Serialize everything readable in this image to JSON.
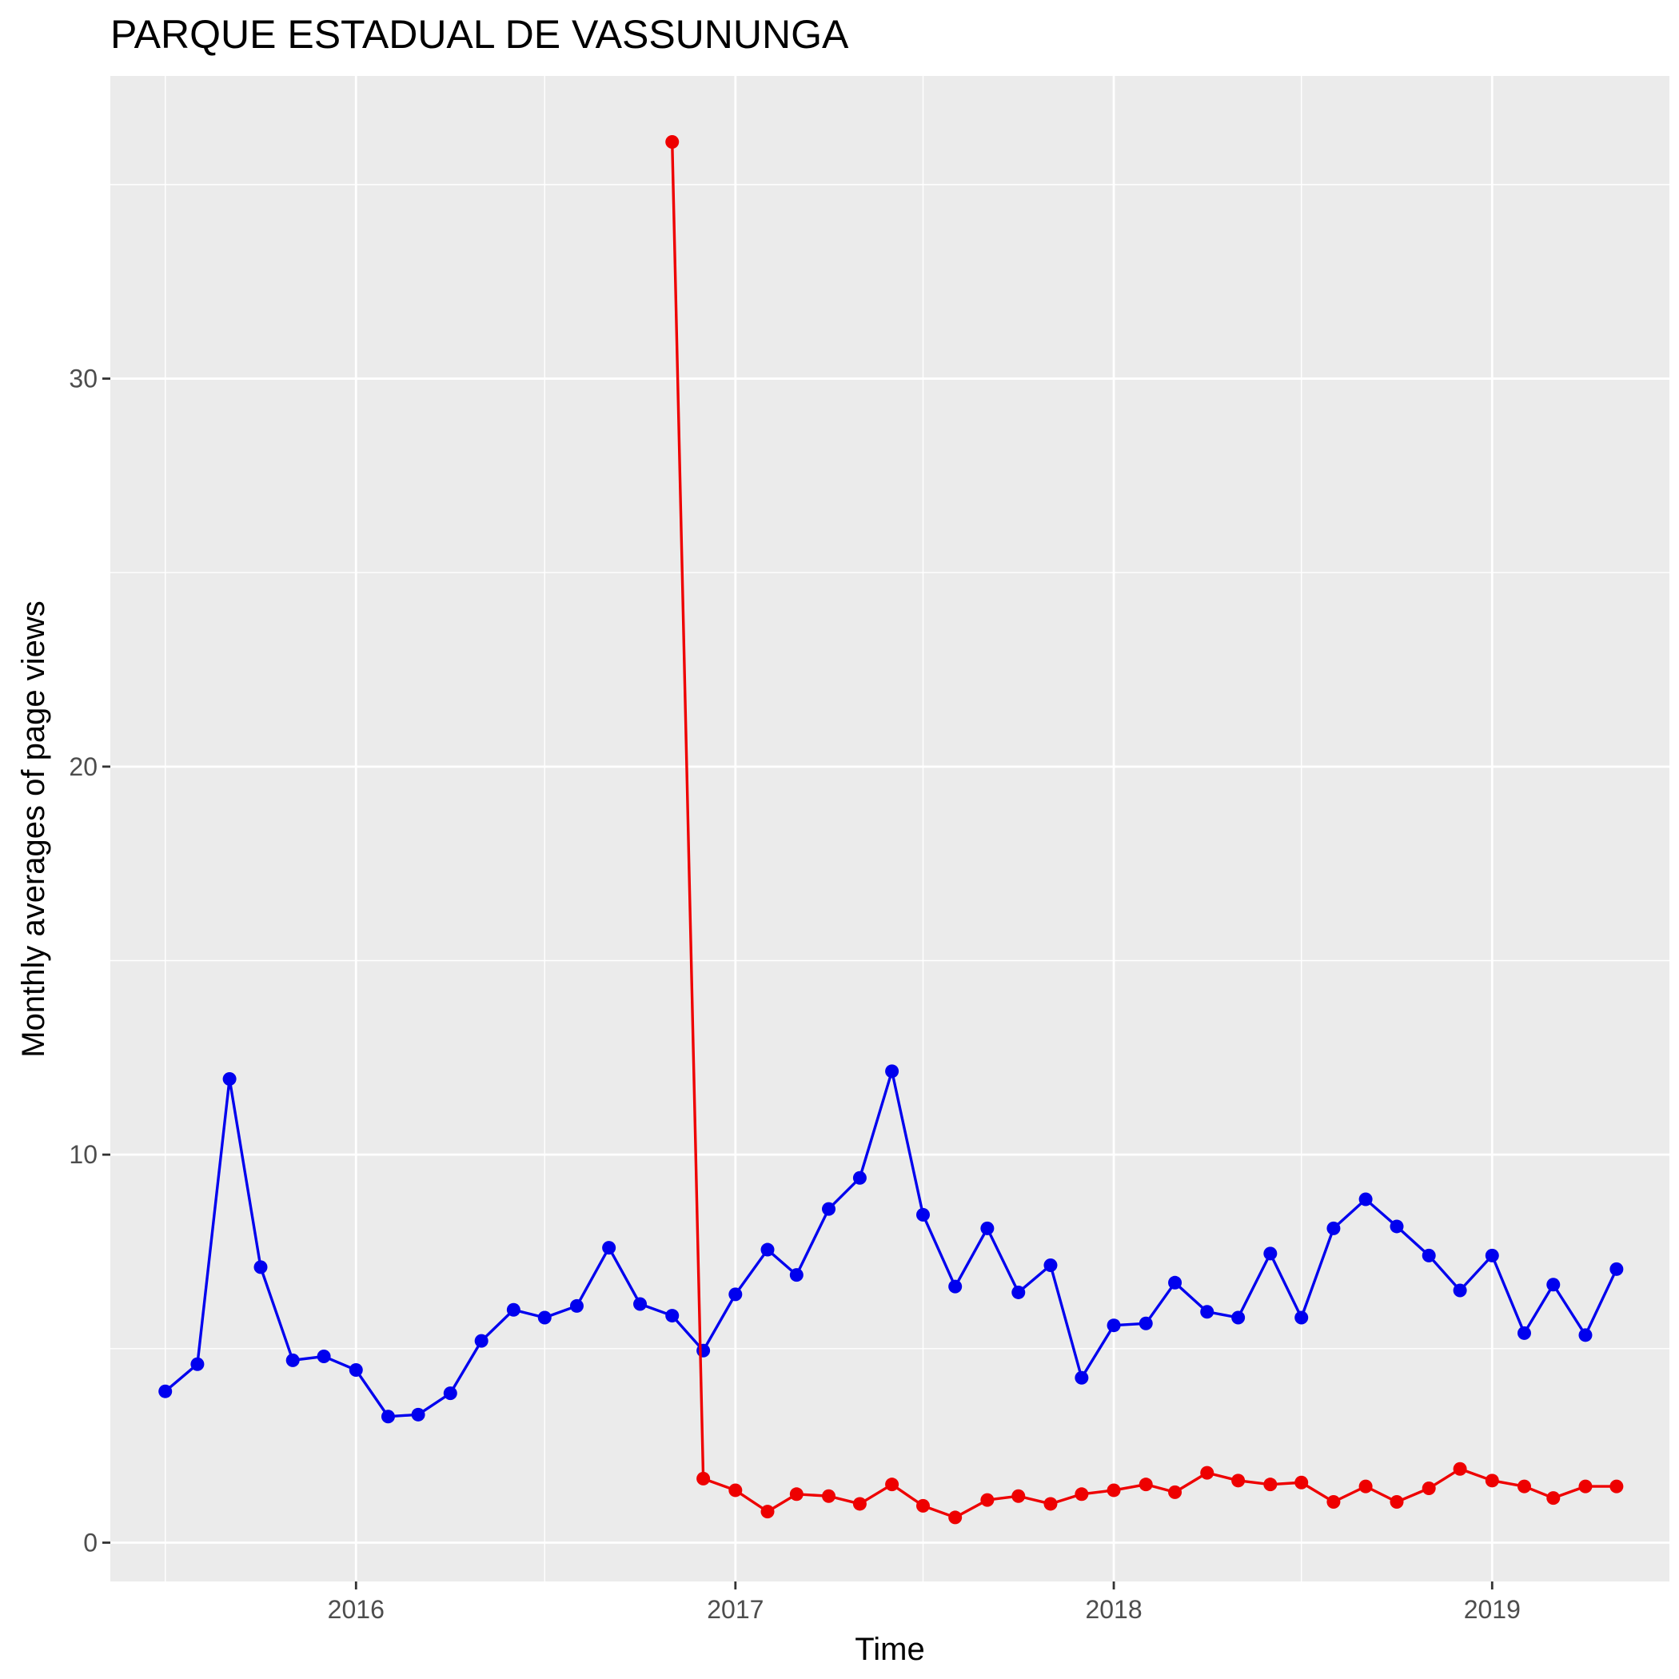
{
  "chart_data": {
    "type": "line",
    "title": "PARQUE ESTADUAL DE VASSUNUNGA",
    "xlabel": "Time",
    "ylabel": "Monthly averages of page views",
    "x_ticks": [
      "2016",
      "2017",
      "2018",
      "2019"
    ],
    "y_ticks": [
      "0",
      "10",
      "20",
      "30"
    ],
    "xlim": [
      "2015-05-09",
      "2019-06-21"
    ],
    "ylim": [
      -1.0,
      37.8
    ],
    "grid": true,
    "background": "#ebebeb",
    "series": [
      {
        "color": "#0000ee",
        "x": [
          "2015-07-01",
          "2015-08-01",
          "2015-09-01",
          "2015-10-01",
          "2015-11-01",
          "2015-12-01",
          "2016-01-01",
          "2016-02-01",
          "2016-03-01",
          "2016-04-01",
          "2016-05-01",
          "2016-06-01",
          "2016-07-01",
          "2016-08-01",
          "2016-09-01",
          "2016-10-01",
          "2016-11-01",
          "2016-12-01",
          "2017-01-01",
          "2017-02-01",
          "2017-03-01",
          "2017-04-01",
          "2017-05-01",
          "2017-06-01",
          "2017-07-01",
          "2017-08-01",
          "2017-09-01",
          "2017-10-01",
          "2017-11-01",
          "2017-12-01",
          "2018-01-01",
          "2018-02-01",
          "2018-03-01",
          "2018-04-01",
          "2018-05-01",
          "2018-06-01",
          "2018-07-01",
          "2018-08-01",
          "2018-09-01",
          "2018-10-01",
          "2018-11-01",
          "2018-12-01",
          "2019-01-01",
          "2019-02-01",
          "2019-03-01",
          "2019-04-01",
          "2019-05-01"
        ],
        "y": [
          3.9,
          4.6,
          11.95,
          7.1,
          4.7,
          4.8,
          4.45,
          3.25,
          3.3,
          3.85,
          5.2,
          6.0,
          5.8,
          6.1,
          7.6,
          6.15,
          5.85,
          4.95,
          6.4,
          7.55,
          6.9,
          8.6,
          9.4,
          12.15,
          8.45,
          6.6,
          8.1,
          6.45,
          7.15,
          4.25,
          5.6,
          5.65,
          6.7,
          5.95,
          5.8,
          7.45,
          5.8,
          8.1,
          8.85,
          8.15,
          7.4,
          6.5,
          7.4,
          5.4,
          6.65,
          5.35,
          7.05
        ]
      },
      {
        "color": "#ee0000",
        "x": [
          "2016-11-01",
          "2016-12-01",
          "2017-01-01",
          "2017-02-01",
          "2017-03-01",
          "2017-04-01",
          "2017-05-01",
          "2017-06-01",
          "2017-07-01",
          "2017-08-01",
          "2017-09-01",
          "2017-10-01",
          "2017-11-01",
          "2017-12-01",
          "2018-01-01",
          "2018-02-01",
          "2018-03-01",
          "2018-04-01",
          "2018-05-01",
          "2018-06-01",
          "2018-07-01",
          "2018-08-01",
          "2018-09-01",
          "2018-10-01",
          "2018-11-01",
          "2018-12-01",
          "2019-01-01",
          "2019-02-01",
          "2019-03-01",
          "2019-04-01",
          "2019-05-01"
        ],
        "y": [
          36.1,
          1.65,
          1.35,
          0.8,
          1.25,
          1.2,
          1.0,
          1.5,
          0.95,
          0.65,
          1.1,
          1.2,
          1.0,
          1.25,
          1.35,
          1.5,
          1.3,
          1.8,
          1.6,
          1.5,
          1.55,
          1.05,
          1.45,
          1.05,
          1.4,
          1.9,
          1.6,
          1.45,
          1.15,
          1.45,
          1.45
        ]
      }
    ]
  }
}
